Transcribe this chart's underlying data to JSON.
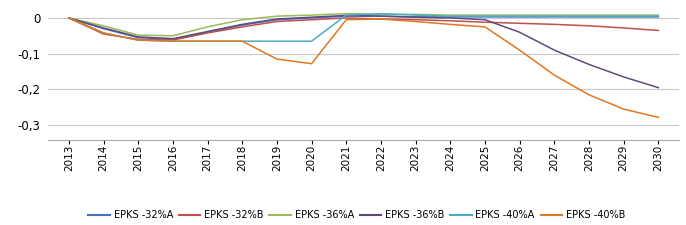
{
  "years": [
    2013,
    2014,
    2015,
    2016,
    2017,
    2018,
    2019,
    2020,
    2021,
    2022,
    2023,
    2024,
    2025,
    2026,
    2027,
    2028,
    2029,
    2030
  ],
  "series": [
    {
      "name": "EPKS -32%A",
      "color": "#4472c4",
      "values": [
        0.0,
        -0.03,
        -0.055,
        -0.06,
        -0.04,
        -0.02,
        -0.005,
        0.0,
        0.005,
        0.005,
        0.003,
        0.003,
        0.003,
        0.003,
        0.003,
        0.003,
        0.003,
        0.003
      ]
    },
    {
      "name": "EPKS -32%B",
      "color": "#c0504d",
      "values": [
        0.0,
        -0.045,
        -0.06,
        -0.062,
        -0.042,
        -0.025,
        -0.01,
        -0.005,
        0.0,
        -0.003,
        -0.005,
        -0.008,
        -0.012,
        -0.015,
        -0.018,
        -0.022,
        -0.028,
        -0.035
      ]
    },
    {
      "name": "EPKS -36%A",
      "color": "#9bbb59",
      "values": [
        0.0,
        -0.022,
        -0.048,
        -0.05,
        -0.025,
        -0.005,
        0.005,
        0.008,
        0.012,
        0.01,
        0.01,
        0.008,
        0.008,
        0.008,
        0.008,
        0.008,
        0.008,
        0.008
      ]
    },
    {
      "name": "EPKS -36%B",
      "color": "#604a7b",
      "values": [
        0.0,
        -0.028,
        -0.053,
        -0.058,
        -0.038,
        -0.018,
        -0.003,
        0.002,
        0.007,
        0.005,
        0.002,
        0.0,
        -0.005,
        -0.04,
        -0.09,
        -0.13,
        -0.165,
        -0.195
      ]
    },
    {
      "name": "EPKS -40%A",
      "color": "#4bacc6",
      "values": [
        0.0,
        -0.042,
        -0.062,
        -0.065,
        -0.065,
        -0.065,
        -0.065,
        -0.065,
        0.008,
        0.012,
        0.008,
        0.005,
        0.005,
        0.005,
        0.005,
        0.005,
        0.005,
        0.005
      ]
    },
    {
      "name": "EPKS -40%B",
      "color": "#e07820",
      "values": [
        0.0,
        -0.042,
        -0.062,
        -0.065,
        -0.065,
        -0.065,
        -0.115,
        -0.128,
        -0.005,
        -0.003,
        -0.01,
        -0.018,
        -0.025,
        -0.09,
        -0.16,
        -0.215,
        -0.255,
        -0.278
      ]
    }
  ],
  "ylim": [
    -0.34,
    0.025
  ],
  "yticks": [
    0.0,
    -0.1,
    -0.2,
    -0.3
  ],
  "ytick_labels": [
    "0",
    "-0,1",
    "-0,2",
    "-0,3"
  ],
  "background_color": "#ffffff",
  "grid_color": "#c8c8c8",
  "figsize": [
    6.86,
    2.25
  ],
  "dpi": 100
}
